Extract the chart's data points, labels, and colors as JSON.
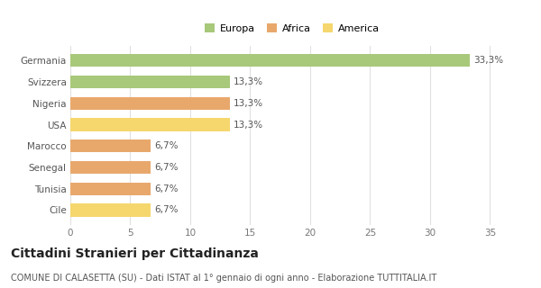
{
  "categories": [
    "Cile",
    "Tunisia",
    "Senegal",
    "Marocco",
    "USA",
    "Nigeria",
    "Svizzera",
    "Germania"
  ],
  "values": [
    6.7,
    6.7,
    6.7,
    6.7,
    13.3,
    13.3,
    13.3,
    33.3
  ],
  "labels": [
    "6,7%",
    "6,7%",
    "6,7%",
    "6,7%",
    "13,3%",
    "13,3%",
    "13,3%",
    "33,3%"
  ],
  "colors": [
    "#f5d76e",
    "#e8a86c",
    "#e8a86c",
    "#e8a86c",
    "#f5d76e",
    "#e8a86c",
    "#a8c87a",
    "#a8c87a"
  ],
  "legend": [
    {
      "label": "Europa",
      "color": "#a8c87a"
    },
    {
      "label": "Africa",
      "color": "#e8a86c"
    },
    {
      "label": "America",
      "color": "#f5d76e"
    }
  ],
  "xlim": [
    0,
    37
  ],
  "xticks": [
    0,
    5,
    10,
    15,
    20,
    25,
    30,
    35
  ],
  "title": "Cittadini Stranieri per Cittadinanza",
  "subtitle": "COMUNE DI CALASETTA (SU) - Dati ISTAT al 1° gennaio di ogni anno - Elaborazione TUTTITALIA.IT",
  "background_color": "#ffffff",
  "bar_height": 0.6,
  "label_fontsize": 7.5,
  "tick_fontsize": 7.5,
  "title_fontsize": 10,
  "subtitle_fontsize": 7
}
